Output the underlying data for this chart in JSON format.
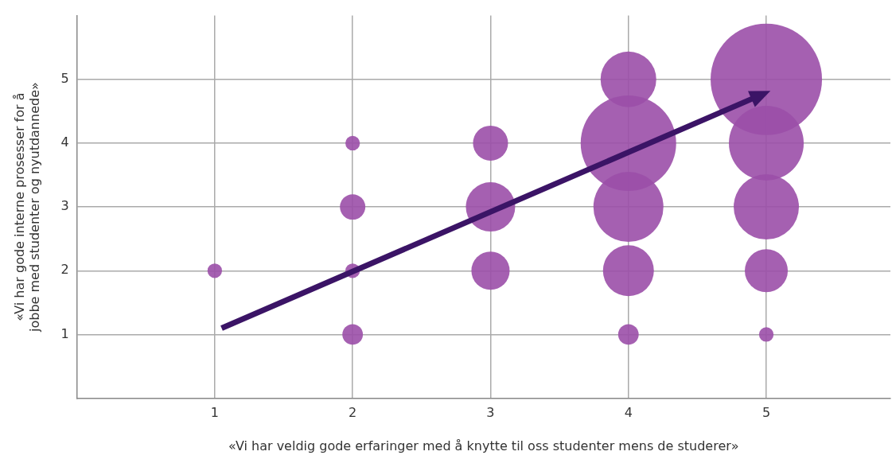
{
  "chart_data": {
    "type": "bubble",
    "xlabel": "«Vi har veldig gode erfaringer med å knytte til oss studenter mens de studerer»",
    "ylabel": "«Vi har gode interne prosesser for å jobbe med studenter og nyutdannede»",
    "xlim": [
      0,
      5.9
    ],
    "ylim": [
      0,
      6
    ],
    "xticks": [
      1,
      2,
      3,
      4,
      5
    ],
    "yticks": [
      1,
      2,
      3,
      4,
      5
    ],
    "grid": true,
    "series": [
      {
        "color": "#9b4fa8",
        "x": [
          1,
          2,
          2,
          2,
          2,
          3,
          3,
          3,
          4,
          4,
          4,
          4,
          4,
          5,
          5,
          5,
          5,
          5
        ],
        "values": [
          2,
          4,
          3,
          2,
          1,
          4,
          3,
          2,
          5,
          4,
          3,
          2,
          1,
          5,
          4,
          3,
          2,
          1
        ],
        "sizes": [
          0.017,
          0.017,
          0.052,
          0.017,
          0.034,
          0.099,
          0.196,
          0.118,
          0.25,
          0.735,
          0.395,
          0.209,
          0.034,
          1,
          0.451,
          0.343,
          0.149,
          0.017
        ]
      }
    ]
  }
}
